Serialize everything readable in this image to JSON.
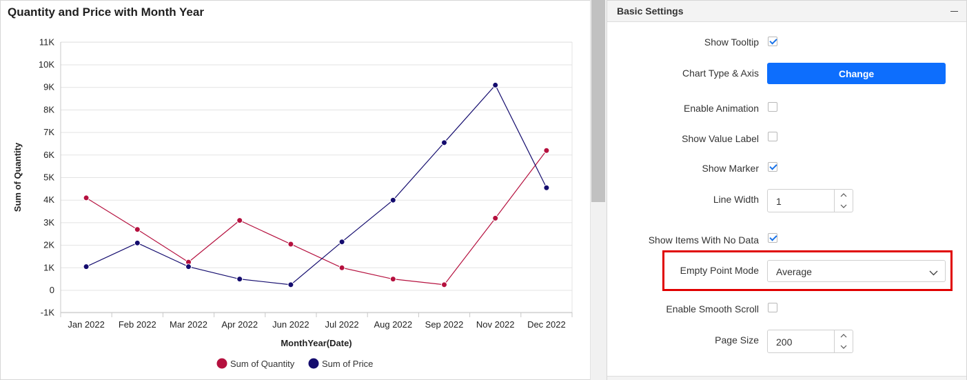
{
  "chart": {
    "title": "Quantity and Price with Month Year"
  },
  "chart_data": {
    "type": "line",
    "title": "Quantity and Price with Month Year",
    "xlabel": "MonthYear(Date)",
    "ylabel": "Sum of Quantity",
    "categories": [
      "Jan 2022",
      "Feb 2022",
      "Mar 2022",
      "Apr 2022",
      "Jun 2022",
      "Jul 2022",
      "Aug 2022",
      "Sep 2022",
      "Nov 2022",
      "Dec 2022"
    ],
    "yticks": [
      "-1K",
      "0",
      "1K",
      "2K",
      "3K",
      "4K",
      "5K",
      "6K",
      "7K",
      "8K",
      "9K",
      "10K",
      "11K"
    ],
    "ylim": [
      -1000,
      11000
    ],
    "grid": true,
    "legend_position": "bottom",
    "series": [
      {
        "name": "Sum of Quantity",
        "color": "#b5103e",
        "values": [
          4100,
          2700,
          1250,
          3100,
          2050,
          1000,
          500,
          250,
          3200,
          6200
        ]
      },
      {
        "name": "Sum of Price",
        "color": "#140c6e",
        "values": [
          1050,
          2100,
          1050,
          500,
          250,
          2150,
          4000,
          6550,
          9100,
          4550
        ]
      }
    ]
  },
  "scrollbar": {
    "icon": "scrollbar-thumb"
  },
  "settings": {
    "title": "Basic Settings",
    "collapse_icon": "minus-icon",
    "show_tooltip": {
      "label": "Show Tooltip",
      "checked": true
    },
    "chart_type_axis": {
      "label": "Chart Type & Axis",
      "button_label": "Change"
    },
    "enable_animation": {
      "label": "Enable Animation",
      "checked": false
    },
    "show_value_label": {
      "label": "Show Value Label",
      "checked": false
    },
    "show_marker": {
      "label": "Show Marker",
      "checked": true
    },
    "line_width": {
      "label": "Line Width",
      "value": "1"
    },
    "show_items_no_data": {
      "label": "Show Items With No Data",
      "checked": true
    },
    "empty_point_mode": {
      "label": "Empty Point Mode",
      "value": "Average"
    },
    "enable_smooth_scroll": {
      "label": "Enable Smooth Scroll",
      "checked": false
    },
    "page_size": {
      "label": "Page Size",
      "value": "200"
    },
    "accent_color": "#0d6efd",
    "highlight_color": "#e00000"
  }
}
